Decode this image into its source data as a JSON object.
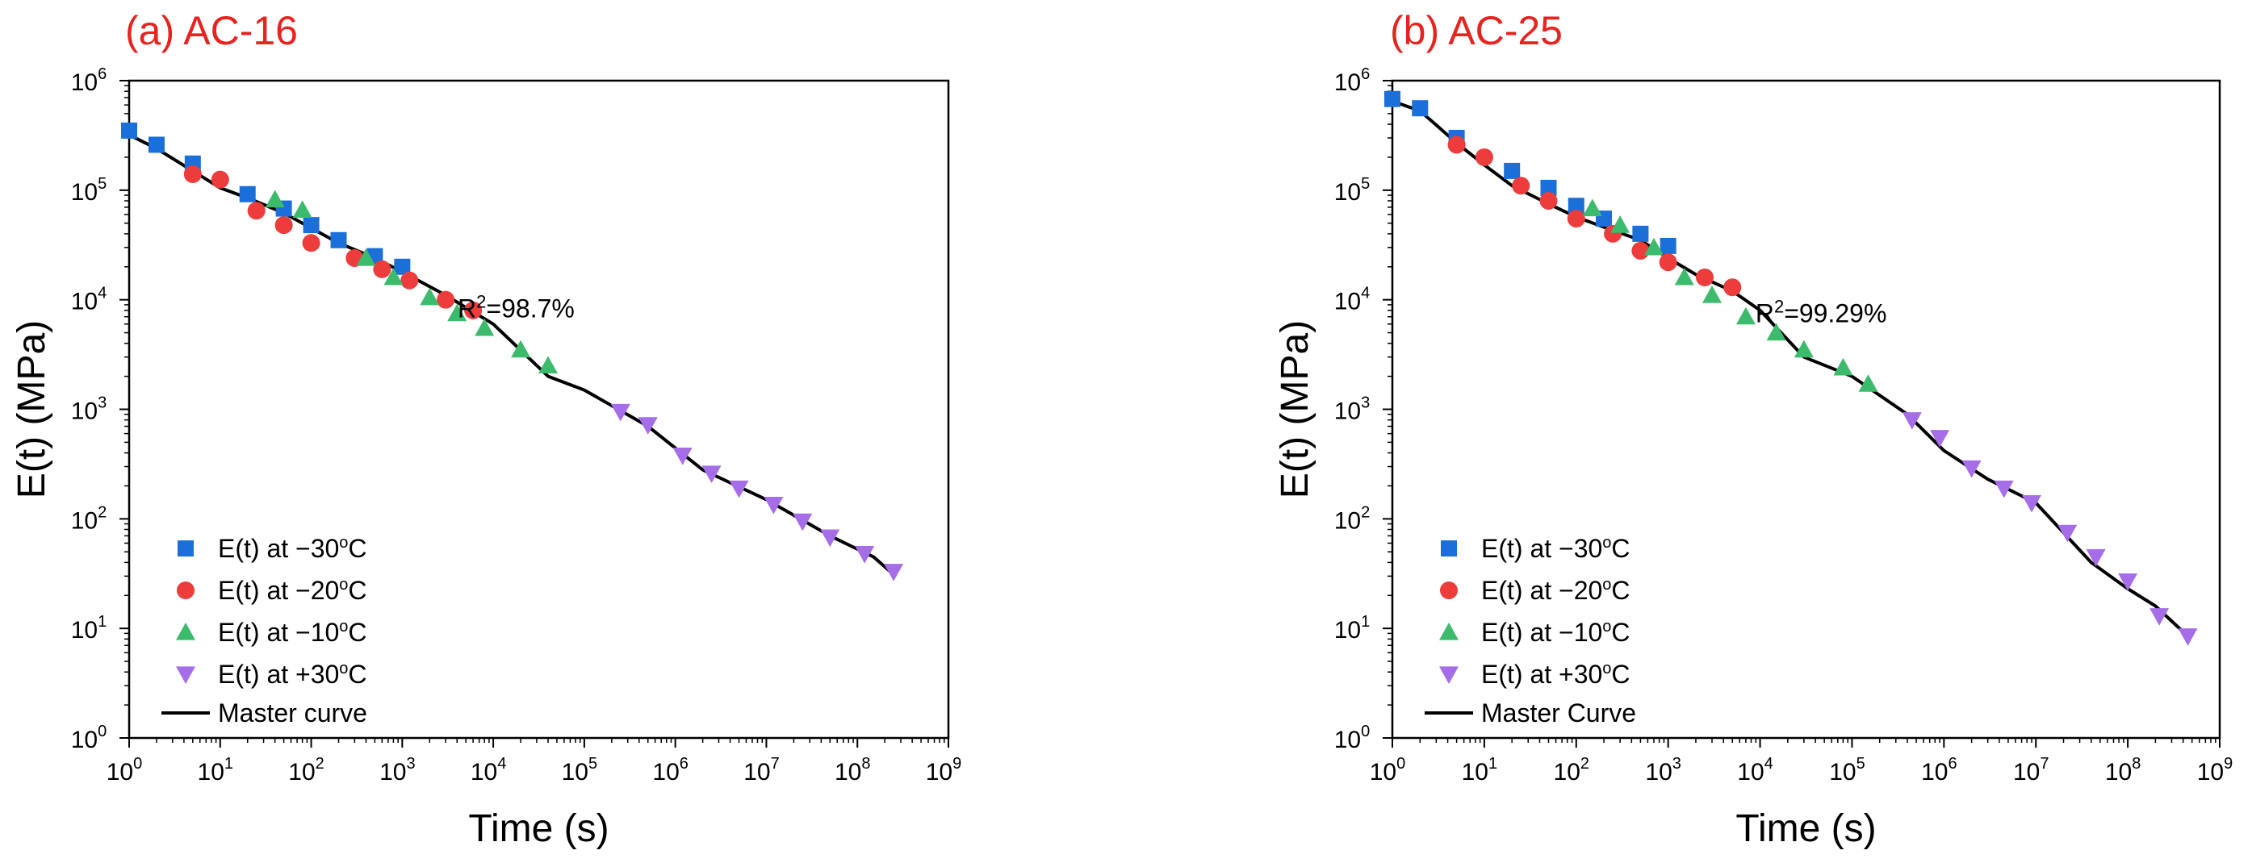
{
  "figure": {
    "colors": {
      "title": "#e8231f",
      "minus30": "#1b6fd8",
      "minus20": "#ec3c3c",
      "minus10": "#3dbb6c",
      "plus30": "#a56ee8",
      "master": "#000000"
    }
  },
  "chart_data": [
    {
      "type": "scatter",
      "title": "(a) AC-16",
      "xlabel": "Time (s)",
      "ylabel": "E(t) (MPa)",
      "xscale": "log",
      "yscale": "log",
      "xlim_exp": [
        0,
        9
      ],
      "ylim_exp": [
        0,
        6
      ],
      "x_tick_labels": [
        {
          "base": "10",
          "exp": "0"
        },
        {
          "base": "10",
          "exp": "1"
        },
        {
          "base": "10",
          "exp": "2"
        },
        {
          "base": "10",
          "exp": "3"
        },
        {
          "base": "10",
          "exp": "4"
        },
        {
          "base": "10",
          "exp": "5"
        },
        {
          "base": "10",
          "exp": "6"
        },
        {
          "base": "10",
          "exp": "7"
        },
        {
          "base": "10",
          "exp": "8"
        },
        {
          "base": "10",
          "exp": "9"
        }
      ],
      "y_tick_labels": [
        {
          "base": "10",
          "exp": "0"
        },
        {
          "base": "10",
          "exp": "1"
        },
        {
          "base": "10",
          "exp": "2"
        },
        {
          "base": "10",
          "exp": "3"
        },
        {
          "base": "10",
          "exp": "4"
        },
        {
          "base": "10",
          "exp": "5"
        },
        {
          "base": "10",
          "exp": "6"
        }
      ],
      "annotation": {
        "base": "R",
        "sup": "2",
        "rest": "=98.7%",
        "x": 20000,
        "y": 10000
      },
      "legend_position": "bottom-left",
      "series": [
        {
          "name": "E(t) at −30",
          "deg": "o",
          "unit": "C",
          "marker": "square",
          "color_key": "minus30",
          "x": [
            1,
            2,
            5,
            20,
            50,
            100,
            200,
            500,
            1000
          ],
          "y": [
            350000,
            260000,
            175000,
            92000,
            68000,
            48000,
            35000,
            25000,
            20000
          ]
        },
        {
          "name": "E(t) at −20",
          "deg": "o",
          "unit": "C",
          "marker": "circle",
          "color_key": "minus20",
          "x": [
            5,
            10,
            25,
            50,
            100,
            300,
            600,
            1200,
            3000,
            6000
          ],
          "y": [
            140000,
            125000,
            65000,
            48000,
            33000,
            24000,
            19000,
            15000,
            10000,
            8000
          ]
        },
        {
          "name": "E(t) at −10",
          "deg": "o",
          "unit": "C",
          "marker": "triangle-up",
          "color_key": "minus10",
          "x": [
            40,
            80,
            400,
            800,
            2000,
            4000,
            8000,
            20000,
            40000
          ],
          "y": [
            82000,
            66000,
            24000,
            16000,
            10500,
            7500,
            5500,
            3500,
            2500
          ]
        },
        {
          "name": "E(t) at +30",
          "deg": "o",
          "unit": "C",
          "marker": "triangle-down",
          "color_key": "plus30",
          "x": [
            250000,
            500000,
            1200000,
            2500000,
            5000000,
            12000000,
            25000000,
            50000000,
            120000000,
            250000000
          ],
          "y": [
            950,
            720,
            380,
            260,
            190,
            135,
            95,
            68,
            48,
            33
          ]
        }
      ],
      "master_curve": {
        "name": "Master curve",
        "x": [
          1,
          2,
          5,
          10,
          20,
          50,
          100,
          200,
          500,
          1000,
          3000,
          10000,
          40000,
          100000,
          500000,
          2000000,
          10000000,
          50000000,
          150000000,
          250000000
        ],
        "y": [
          320000,
          240000,
          150000,
          105000,
          85000,
          62000,
          45000,
          33000,
          24000,
          18000,
          11000,
          6000,
          2000,
          1500,
          700,
          280,
          150,
          70,
          45,
          31
        ]
      }
    },
    {
      "type": "scatter",
      "title": "(b) AC-25",
      "xlabel": "Time (s)",
      "ylabel": "E(t) (MPa)",
      "xscale": "log",
      "yscale": "log",
      "xlim_exp": [
        0,
        9
      ],
      "ylim_exp": [
        0,
        6
      ],
      "x_tick_labels": [
        {
          "base": "10",
          "exp": "0"
        },
        {
          "base": "10",
          "exp": "1"
        },
        {
          "base": "10",
          "exp": "2"
        },
        {
          "base": "10",
          "exp": "3"
        },
        {
          "base": "10",
          "exp": "4"
        },
        {
          "base": "10",
          "exp": "5"
        },
        {
          "base": "10",
          "exp": "6"
        },
        {
          "base": "10",
          "exp": "7"
        },
        {
          "base": "10",
          "exp": "8"
        },
        {
          "base": "10",
          "exp": "9"
        }
      ],
      "y_tick_labels": [
        {
          "base": "10",
          "exp": "0"
        },
        {
          "base": "10",
          "exp": "1"
        },
        {
          "base": "10",
          "exp": "2"
        },
        {
          "base": "10",
          "exp": "3"
        },
        {
          "base": "10",
          "exp": "4"
        },
        {
          "base": "10",
          "exp": "5"
        },
        {
          "base": "10",
          "exp": "6"
        }
      ],
      "annotation": {
        "base": "R",
        "sup": "2",
        "rest": "=99.29%",
        "x": 20000,
        "y": 10000
      },
      "legend_position": "bottom-left",
      "series": [
        {
          "name": "E(t) at −30",
          "deg": "o",
          "unit": "C",
          "marker": "square",
          "color_key": "minus30",
          "x": [
            1,
            2,
            5,
            20,
            50,
            100,
            200,
            500,
            1000
          ],
          "y": [
            680000,
            560000,
            300000,
            150000,
            105000,
            72000,
            55000,
            40000,
            31000
          ]
        },
        {
          "name": "E(t) at −20",
          "deg": "o",
          "unit": "C",
          "marker": "circle",
          "color_key": "minus20",
          "x": [
            5,
            10,
            25,
            50,
            100,
            250,
            500,
            1000,
            2500,
            5000
          ],
          "y": [
            260000,
            200000,
            110000,
            80000,
            55000,
            40000,
            28000,
            22000,
            16000,
            13000
          ]
        },
        {
          "name": "E(t) at −10",
          "deg": "o",
          "unit": "C",
          "marker": "triangle-up",
          "color_key": "minus10",
          "x": [
            150,
            300,
            700,
            1500,
            3000,
            7000,
            15000,
            30000,
            80000,
            150000
          ],
          "y": [
            68000,
            48000,
            30000,
            16000,
            11000,
            7000,
            5000,
            3500,
            2400,
            1700
          ]
        },
        {
          "name": "E(t) at +30",
          "deg": "o",
          "unit": "C",
          "marker": "triangle-down",
          "color_key": "plus30",
          "x": [
            450000,
            900000,
            2000000,
            4500000,
            9000000,
            22000000,
            45000000,
            100000000,
            220000000,
            450000000
          ],
          "y": [
            800,
            550,
            290,
            190,
            140,
            75,
            45,
            27,
            13,
            8.5
          ]
        }
      ],
      "master_curve": {
        "name": "Master Curve",
        "x": [
          1,
          2,
          5,
          10,
          20,
          50,
          100,
          200,
          500,
          1000,
          2000,
          5000,
          10000,
          30000,
          100000,
          400000,
          1000000,
          3000000,
          10000000,
          40000000,
          100000000,
          200000000,
          450000000
        ],
        "y": [
          650000,
          530000,
          270000,
          170000,
          110000,
          75000,
          57000,
          46000,
          35000,
          24000,
          17000,
          12000,
          8000,
          3000,
          2000,
          900,
          420,
          230,
          140,
          40,
          23,
          16,
          8.5
        ]
      }
    }
  ]
}
